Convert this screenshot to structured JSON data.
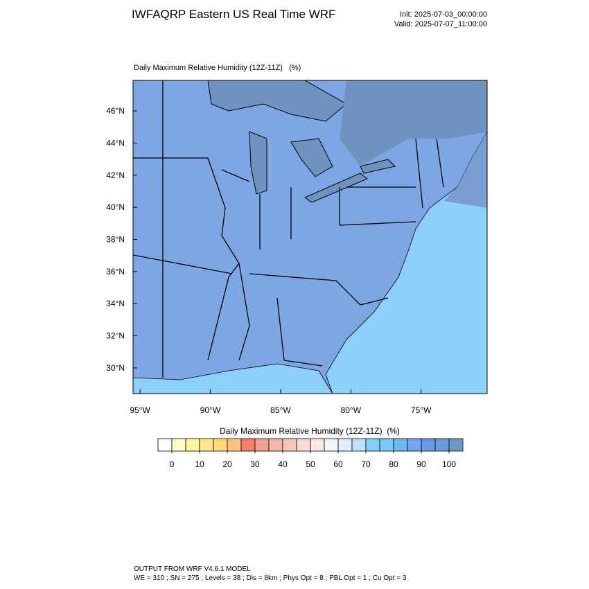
{
  "header": {
    "title": "IWFAQRP Eastern US Real Time WRF",
    "init": "Init: 2025-07-03_00:00:00",
    "valid": "Valid: 2025-07-07_11:00:00"
  },
  "map": {
    "title": "Daily Maximum Relative Humidity (12Z-11Z)   (%)",
    "xlim": [
      -95.5,
      -70.3
    ],
    "ylim": [
      28.4,
      47.9
    ],
    "xticks": [
      {
        "value": -95,
        "label": "95°W"
      },
      {
        "value": -90,
        "label": "90°W"
      },
      {
        "value": -85,
        "label": "85°W"
      },
      {
        "value": -80,
        "label": "80°W"
      },
      {
        "value": -75,
        "label": "75°W"
      }
    ],
    "yticks": [
      {
        "value": 30,
        "label": "30°N"
      },
      {
        "value": 32,
        "label": "32°N"
      },
      {
        "value": 34,
        "label": "34°N"
      },
      {
        "value": 36,
        "label": "36°N"
      },
      {
        "value": 38,
        "label": "38°N"
      },
      {
        "value": 40,
        "label": "40°N"
      },
      {
        "value": 42,
        "label": "42°N"
      },
      {
        "value": 44,
        "label": "44°N"
      },
      {
        "value": 46,
        "label": "46°N"
      }
    ]
  },
  "colorbar": {
    "title": "Daily Maximum Relative Humidity (12Z-11Z)  (%)",
    "range": [
      -5,
      105
    ],
    "ticks": [
      0,
      10,
      20,
      30,
      40,
      50,
      60,
      70,
      80,
      90,
      100
    ],
    "colors": [
      "#ffffff",
      "#ffffc8",
      "#fff5a0",
      "#ffe88c",
      "#ffd877",
      "#ffc080",
      "#f4806c",
      "#f2a090",
      "#f4b8a8",
      "#f6c8bc",
      "#f8dcd4",
      "#fce8e4",
      "#f4f4ff",
      "#e0ecff",
      "#c0e0ff",
      "#80d0ff",
      "#78c8f8",
      "#70b8f0",
      "#70a8f0",
      "#6898e8",
      "#6a9ad8",
      "#6a98c8"
    ]
  },
  "footer": {
    "lines": [
      "OUTPUT FROM WRF V4.6.1 MODEL",
      "WE = 310 ; SN = 275 ; Levels = 38 ; Dis = 8km ; Phys Opt = 8 ; PBL Opt = 1 ; Cu Opt = 3"
    ]
  }
}
